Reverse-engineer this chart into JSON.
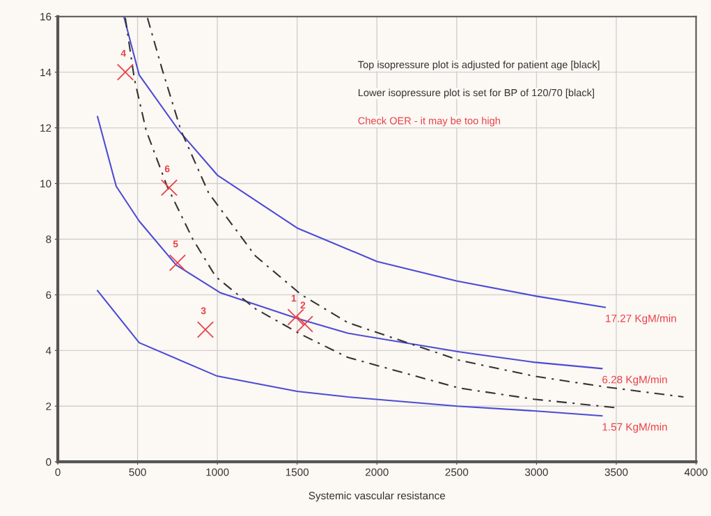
{
  "chart_data": {
    "type": "line",
    "xlabel": "Systemic vascular resistance",
    "xlim": [
      0,
      4000
    ],
    "xticks": [
      0,
      500,
      1000,
      1500,
      2000,
      2500,
      3000,
      3500,
      4000
    ],
    "ylim": [
      0,
      16
    ],
    "yticks": [
      0,
      2,
      4,
      6,
      8,
      10,
      12,
      14,
      16
    ],
    "grid": true,
    "marker": "none",
    "line_style": "solid",
    "series": [
      {
        "name": "17.27 KgM/min",
        "color": "#4b4bd6",
        "x": [
          414,
          510,
          759,
          1000,
          1500,
          2000,
          2500,
          3000,
          3430
        ],
        "values": [
          16,
          13.9,
          11.9,
          10.3,
          8.4,
          7.2,
          6.5,
          5.95,
          5.55
        ]
      },
      {
        "name": "6.28 KgM/min",
        "color": "#4b4bd6",
        "x": [
          249,
          366,
          510,
          742,
          1020,
          1500,
          1818,
          2516,
          2983,
          3410
        ],
        "values": [
          12.4,
          9.9,
          8.65,
          7.07,
          6.07,
          5.15,
          4.62,
          3.95,
          3.58,
          3.35
        ]
      },
      {
        "name": "1.57 KgM/min",
        "color": "#4b4bd6",
        "x": [
          249,
          510,
          999,
          1500,
          1818,
          2503,
          2983,
          3410
        ],
        "values": [
          6.15,
          4.28,
          3.08,
          2.53,
          2.33,
          2.0,
          1.83,
          1.65
        ]
      },
      {
        "color": "#333333",
        "line_style": "dashed",
        "x": [
          562,
          654,
          772,
          946,
          1238,
          1527,
          1818,
          2516,
          2983,
          3419,
          3921
        ],
        "values": [
          15.95,
          14.1,
          11.9,
          9.65,
          7.4,
          6.0,
          5.0,
          3.65,
          3.08,
          2.7,
          2.33
        ]
      },
      {
        "color": "#333333",
        "line_style": "dashed",
        "x": [
          423,
          480,
          554,
          685,
          846,
          990,
          1238,
          1527,
          1818,
          2516,
          2983,
          3490
        ],
        "values": [
          15.95,
          13.75,
          11.9,
          9.9,
          8.0,
          6.65,
          5.5,
          4.57,
          3.75,
          2.65,
          2.25,
          1.95
        ]
      },
      {
        "type": "scatter",
        "marker": "cross",
        "color": "#e8404a",
        "x": [
          1491,
          1548,
          925,
          423,
          750,
          698
        ],
        "values": [
          5.2,
          4.95,
          4.75,
          14.0,
          7.15,
          9.85
        ]
      }
    ],
    "annotations": [
      {
        "text": "1",
        "x": 1491,
        "y": 5.2
      },
      {
        "text": "2",
        "x": 1548,
        "y": 4.95
      },
      {
        "text": "3",
        "x": 925,
        "y": 4.75
      },
      {
        "text": "4",
        "x": 423,
        "y": 14.0
      },
      {
        "text": "5",
        "x": 750,
        "y": 7.15
      },
      {
        "text": "6",
        "x": 698,
        "y": 9.85
      },
      "Top isopressure plot is adjusted for patient age [black]",
      "Lower isopressure plot is set for BP of 120/70 [black]",
      "Check OER - it may be too high"
    ]
  }
}
